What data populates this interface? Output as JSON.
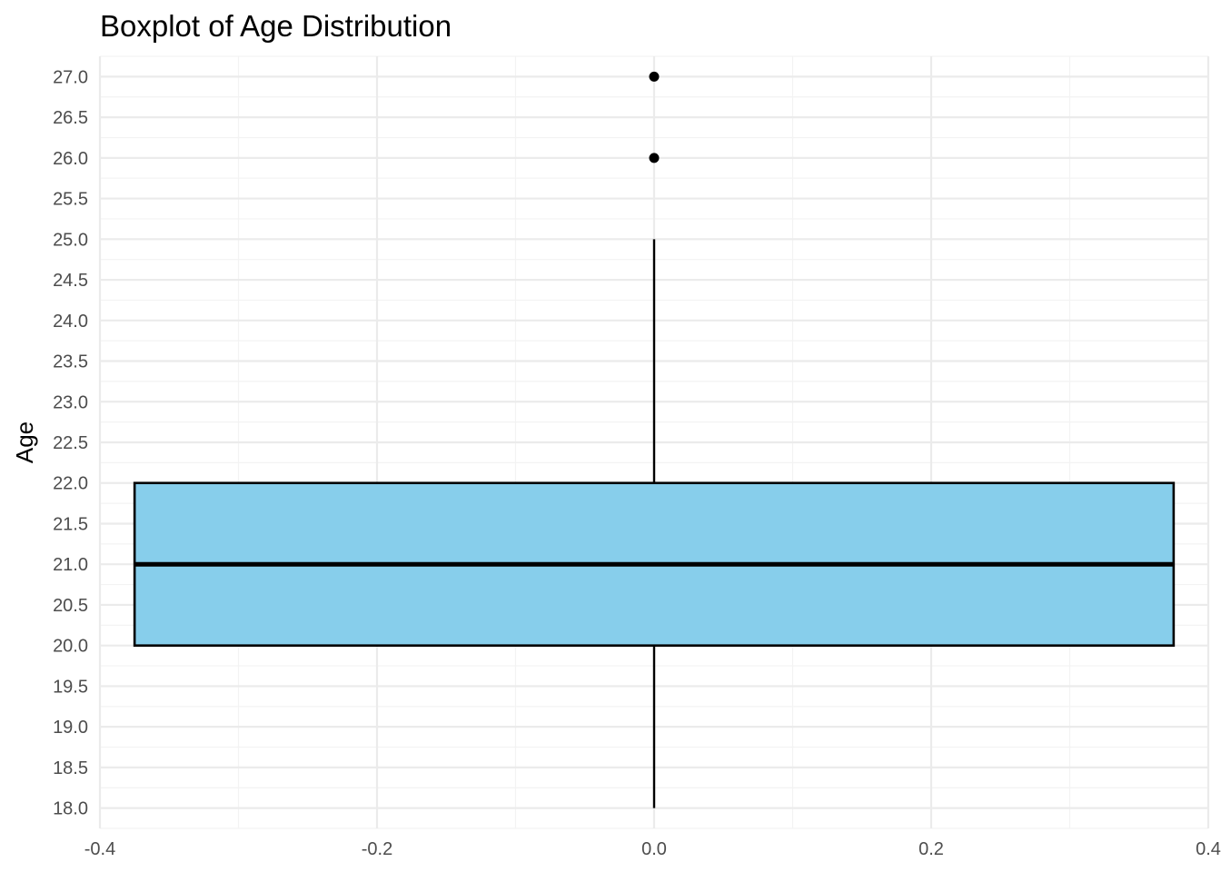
{
  "chart_data": {
    "type": "boxplot",
    "title": "Boxplot of Age Distribution",
    "xlabel": "",
    "ylabel": "Age",
    "xlim": [
      -0.4,
      0.4
    ],
    "ylim": [
      17.75,
      27.25
    ],
    "x_ticks": [
      -0.4,
      -0.2,
      0.0,
      0.2,
      0.4
    ],
    "x_tick_labels": [
      "-0.4",
      "-0.2",
      "0.0",
      "0.2",
      "0.4"
    ],
    "x_minor_ticks": [
      -0.3,
      -0.1,
      0.1,
      0.3
    ],
    "y_ticks": [
      18.0,
      18.5,
      19.0,
      19.5,
      20.0,
      20.5,
      21.0,
      21.5,
      22.0,
      22.5,
      23.0,
      23.5,
      24.0,
      24.5,
      25.0,
      25.5,
      26.0,
      26.5,
      27.0
    ],
    "y_tick_labels": [
      "18.0",
      "18.5",
      "19.0",
      "19.5",
      "20.0",
      "20.5",
      "21.0",
      "21.5",
      "22.0",
      "22.5",
      "23.0",
      "23.5",
      "24.0",
      "24.5",
      "25.0",
      "25.5",
      "26.0",
      "26.5",
      "27.0"
    ],
    "y_minor_ticks": [
      17.75,
      18.25,
      18.75,
      19.25,
      19.75,
      20.25,
      20.75,
      21.25,
      21.75,
      22.25,
      22.75,
      23.25,
      23.75,
      24.25,
      24.75,
      25.25,
      25.75,
      26.25,
      26.75,
      27.25
    ],
    "grid": true,
    "box": {
      "x": 0.0,
      "box_left": -0.375,
      "box_right": 0.375,
      "lower_whisker": 18.0,
      "q1": 20.0,
      "median": 21.0,
      "q3": 22.0,
      "upper_whisker": 25.0,
      "outliers": [
        26.0,
        27.0
      ]
    },
    "colors": {
      "box_fill": "#87CEEB",
      "box_stroke": "#000000",
      "grid_major": "#EBEBEB",
      "grid_minor": "#F3F3F3",
      "tick_text": "#4D4D4D"
    }
  }
}
